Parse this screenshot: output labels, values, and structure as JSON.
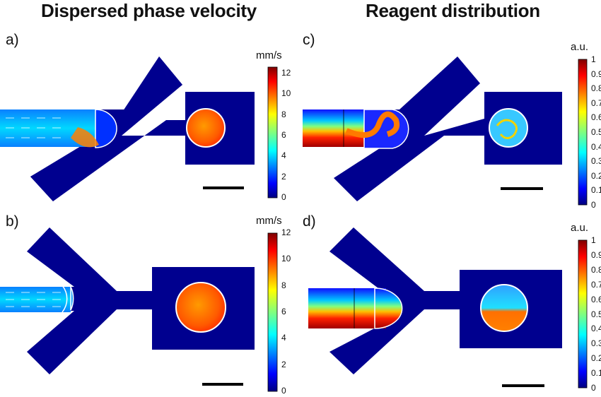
{
  "titles": {
    "left": "Dispersed phase velocity",
    "right": "Reagent distribution"
  },
  "panels": [
    {
      "label": "a)",
      "unit": "mm/s",
      "ticks": [
        "12",
        "10",
        "8",
        "6",
        "4",
        "2",
        "0"
      ]
    },
    {
      "label": "b)",
      "unit": "mm/s",
      "ticks": [
        "12",
        "10",
        "8",
        "6",
        "4",
        "2",
        "0"
      ]
    },
    {
      "label": "c)",
      "unit": "a.u.",
      "ticks": [
        "1",
        "0.9",
        "0.8",
        "0.7",
        "0.6",
        "0.5",
        "0.4",
        "0.3",
        "0.2",
        "0.1",
        "0"
      ]
    },
    {
      "label": "d)",
      "unit": "a.u.",
      "ticks": [
        "1",
        "0.9",
        "0.8",
        "0.7",
        "0.6",
        "0.5",
        "0.4",
        "0.3",
        "0.2",
        "0.1",
        "0"
      ]
    }
  ],
  "colors": {
    "channel": "#00008f",
    "jet_low": "#000080",
    "jet_high": "#800000",
    "scale_bar": "#000000"
  }
}
